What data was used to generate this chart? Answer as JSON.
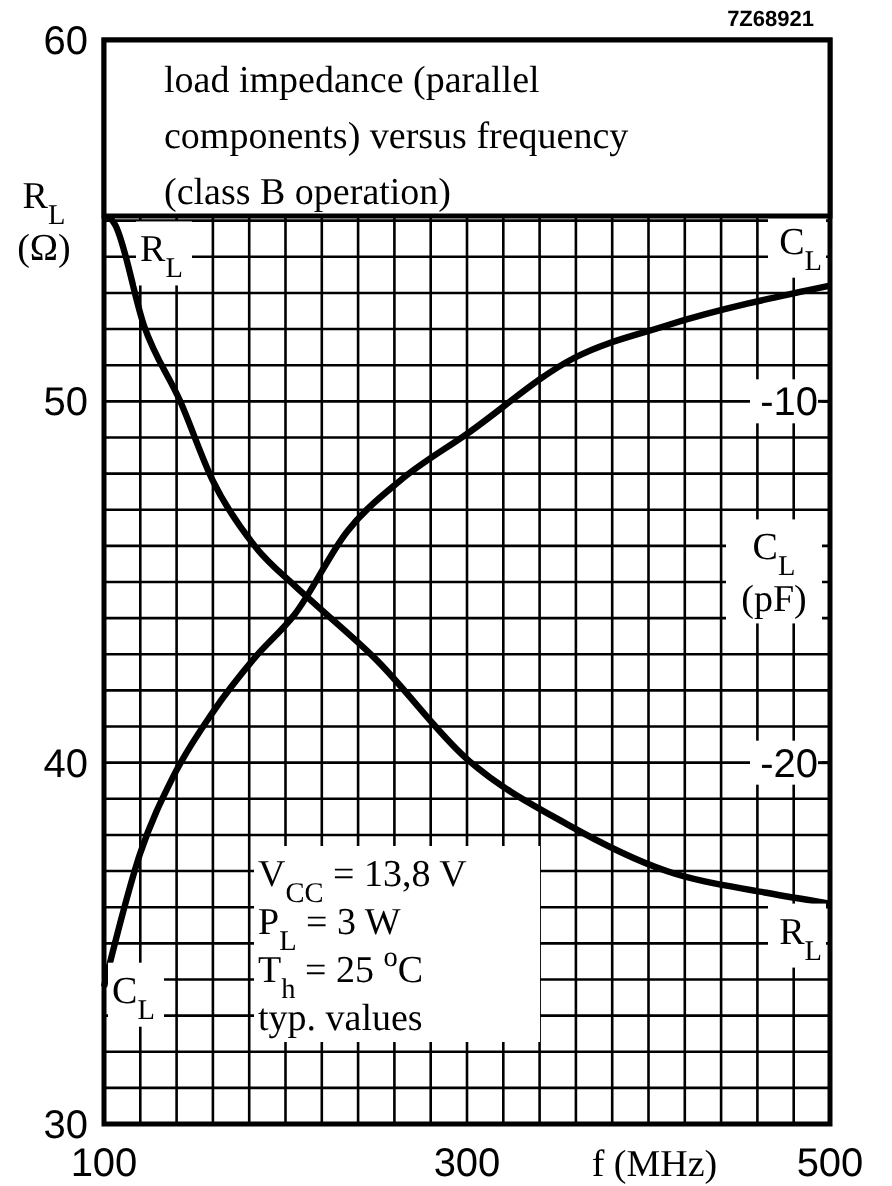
{
  "chart_data": {
    "type": "line",
    "title": "load impedance (parallel components) versus frequency (class B operation)",
    "xlabel": "f (MHz)",
    "ylabel": "R$_{L}$ (Ω)",
    "y2label": "C$_{L}$ (pF)",
    "xlim": [
      100,
      500
    ],
    "xticks": [
      100,
      {
        "value": 120,
        "label": null
      },
      {
        "value": 140,
        "label": null
      },
      {
        "value": 160,
        "label": null
      },
      {
        "value": 180,
        "label": null
      },
      {
        "value": 200,
        "label": null
      },
      {
        "value": 220,
        "label": null
      },
      {
        "value": 240,
        "label": null
      },
      {
        "value": 260,
        "label": null
      },
      {
        "value": 280,
        "label": null
      },
      300,
      {
        "value": 320,
        "label": null
      },
      {
        "value": 340,
        "label": null
      },
      {
        "value": 360,
        "label": null
      },
      {
        "value": 380,
        "label": null
      },
      {
        "value": 400,
        "label": null
      },
      {
        "value": 420,
        "label": null
      },
      {
        "value": 440,
        "label": null
      },
      {
        "value": 460,
        "label": null
      },
      {
        "value": 480,
        "label": null
      },
      500
    ],
    "ylim": [
      30,
      60
    ],
    "yticks": [
      30,
      {
        "value": 31,
        "label": null
      },
      {
        "value": 32,
        "label": null
      },
      {
        "value": 33,
        "label": null
      },
      {
        "value": 34,
        "label": null
      },
      {
        "value": 35,
        "label": null
      },
      {
        "value": 36,
        "label": null
      },
      {
        "value": 37,
        "label": null
      },
      {
        "value": 38,
        "label": null
      },
      {
        "value": 39,
        "label": null
      },
      40,
      {
        "value": 41,
        "label": null
      },
      {
        "value": 42,
        "label": null
      },
      {
        "value": 43,
        "label": null
      },
      {
        "value": 44,
        "label": null
      },
      {
        "value": 45,
        "label": null
      },
      {
        "value": 46,
        "label": null
      },
      {
        "value": 47,
        "label": null
      },
      {
        "value": 48,
        "label": null
      },
      {
        "value": 49,
        "label": null
      },
      50,
      {
        "value": 51,
        "label": null
      },
      {
        "value": 52,
        "label": null
      },
      {
        "value": 53,
        "label": null
      },
      {
        "value": 54,
        "label": null
      },
      {
        "value": 55,
        "label": null
      },
      60
    ],
    "y2lim": [
      -30,
      0
    ],
    "y2ticks": [
      -10,
      -20
    ],
    "grid": true,
    "marker": "none",
    "line_style": "solid",
    "series": [
      {
        "name": "R$_{L}$",
        "color": "#000000",
        "x": [
          100,
          106,
          122,
          142,
          160,
          183,
          205,
          216,
          249,
          300,
          355,
          410,
          465,
          500
        ],
        "values": [
          55.2,
          54.9,
          52.1,
          50.0,
          47.8,
          46.0,
          44.9,
          44.4,
          42.9,
          40.1,
          38.3,
          37.0,
          36.4,
          36.1
        ]
      },
      {
        "name": "C$_{L}$",
        "color": "#000000",
        "axis": "y2",
        "x": [
          100,
          120,
          138,
          160,
          183,
          205,
          234,
          263,
          300,
          359,
          410,
          500
        ],
        "values": [
          -26.2,
          -22.5,
          -20.4,
          -18.6,
          -17.1,
          -15.9,
          -13.6,
          -12.2,
          -10.9,
          -8.8,
          -7.9,
          -6.8
        ]
      }
    ],
    "annotations": [
      "7Z68921",
      "V$_{CC}$ = 13,8 V",
      "P$_{L}$ = 3 W",
      "T$_{h}$ = 25 $^{o}$C",
      "typ. values"
    ]
  }
}
